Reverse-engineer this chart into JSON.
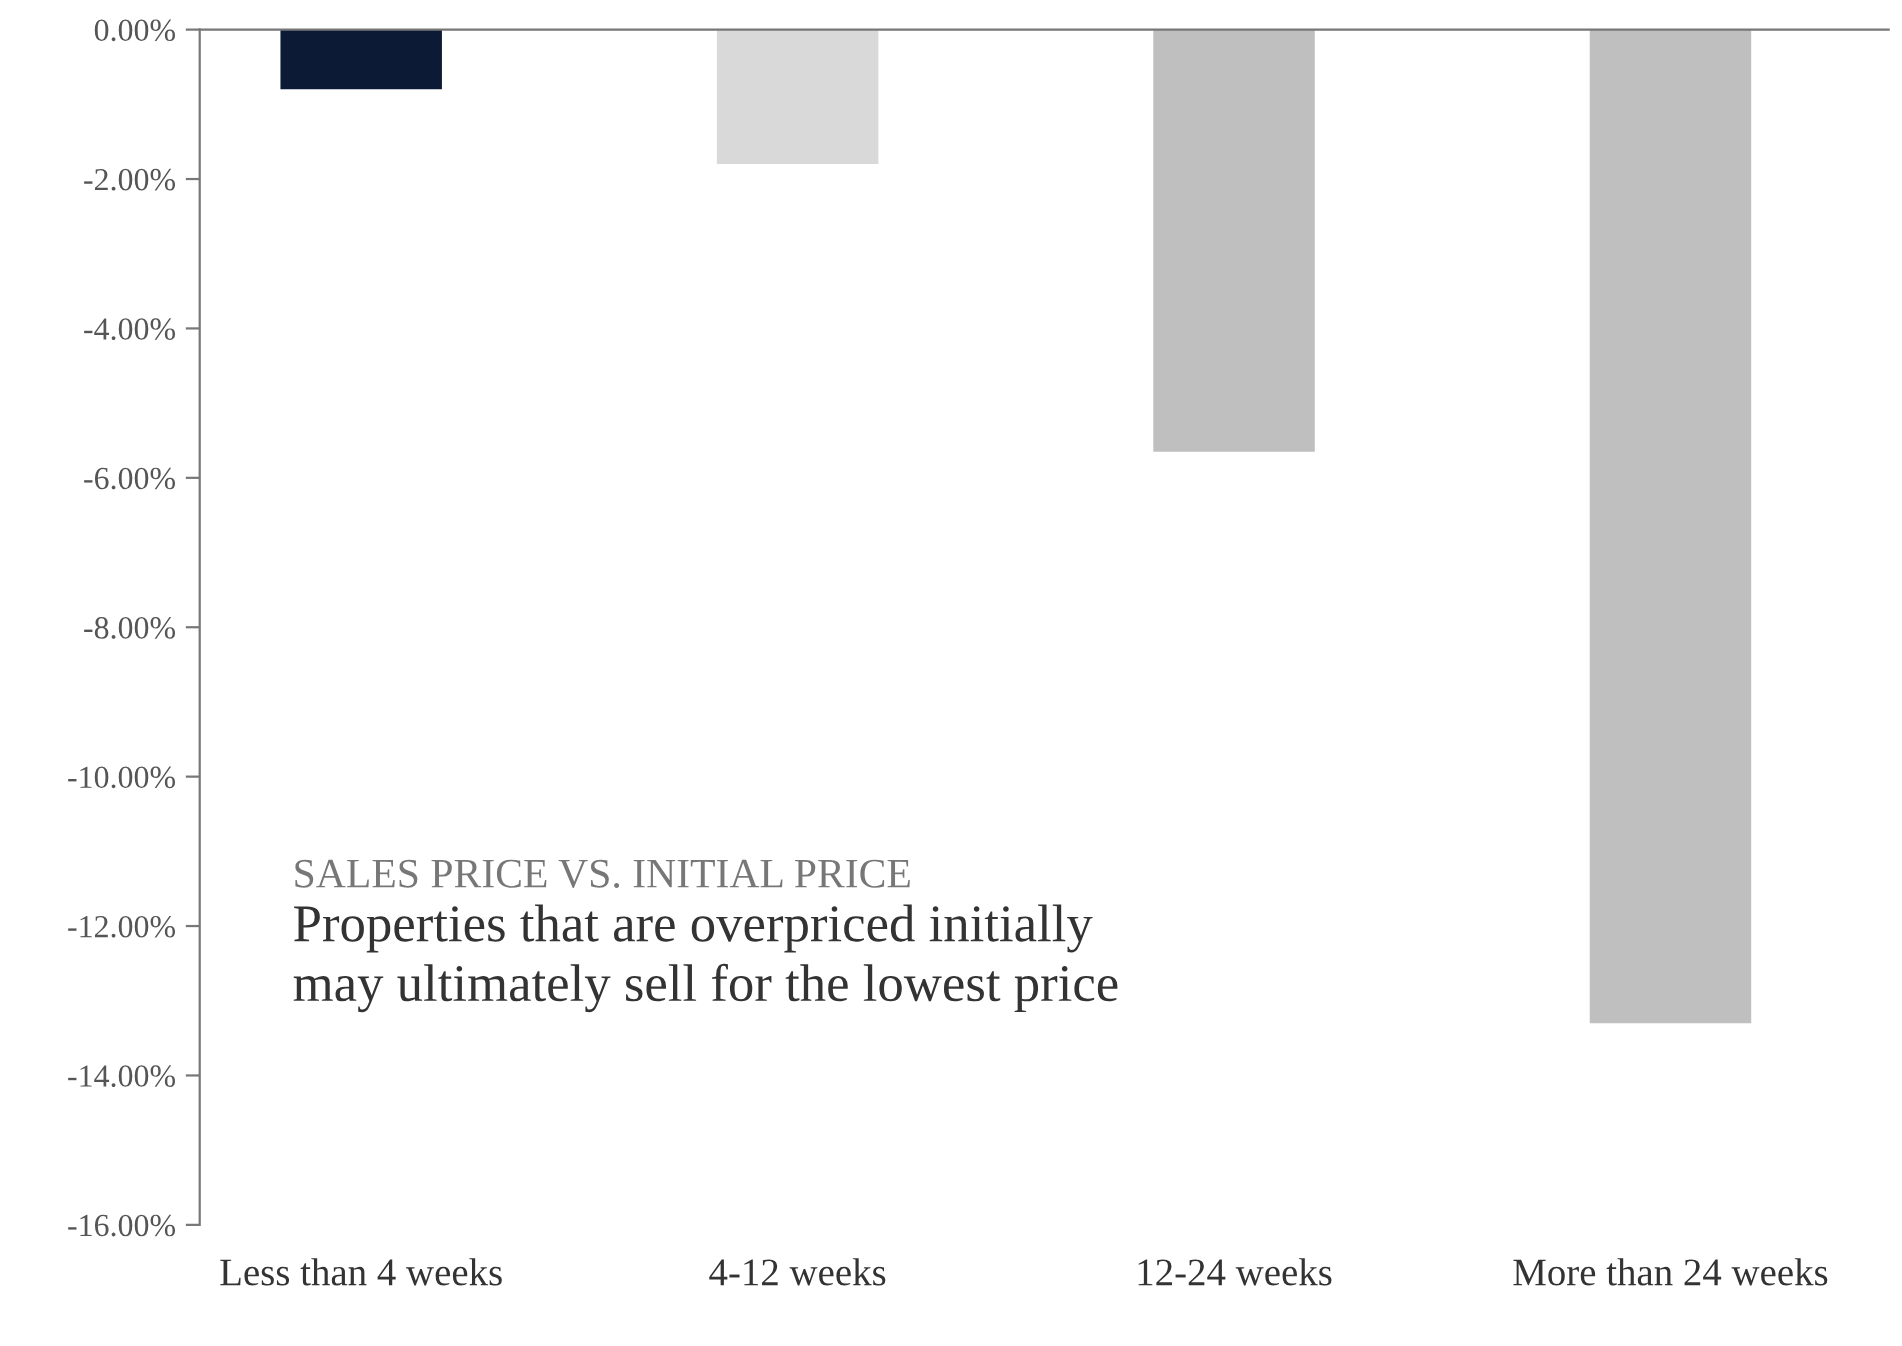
{
  "chart_data": {
    "type": "bar",
    "title": "SALES PRICE VS. INITIAL PRICE",
    "subtitle": "Properties that are overpriced initially\nmay ultimately sell for the lowest price",
    "categories": [
      "Less than 4 weeks",
      "4-12 weeks",
      "12-24 weeks",
      "More than 24 weeks"
    ],
    "values": [
      -0.8,
      -1.8,
      -5.65,
      -13.3
    ],
    "colors": [
      "#0d1a36",
      "#d9d9d9",
      "#bfbfbf",
      "#bfbfbf"
    ],
    "ylim": [
      -16,
      0
    ],
    "yticks": [
      {
        "value": 0,
        "label": "0.00%"
      },
      {
        "value": -2,
        "label": "-2.00%"
      },
      {
        "value": -4,
        "label": "-4.00%"
      },
      {
        "value": -6,
        "label": "-6.00%"
      },
      {
        "value": -8,
        "label": "-8.00%"
      },
      {
        "value": -10,
        "label": "-10.00%"
      },
      {
        "value": -12,
        "label": "-12.00%"
      },
      {
        "value": -14,
        "label": "-14.00%"
      },
      {
        "value": -16,
        "label": "-16.00%"
      }
    ],
    "grid": false,
    "legend": false
  }
}
